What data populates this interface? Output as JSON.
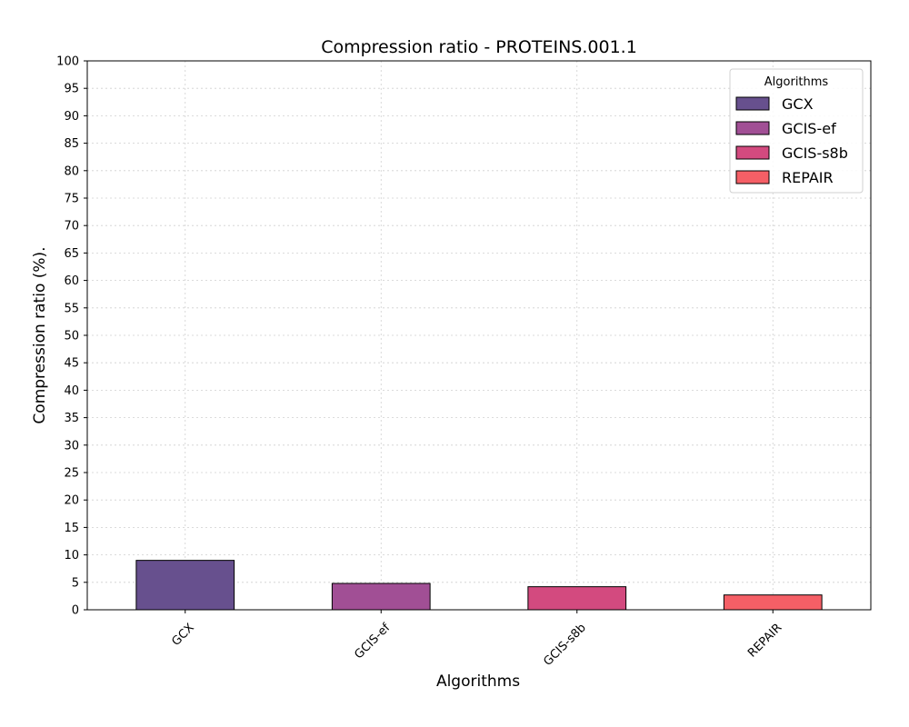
{
  "chart_data": {
    "type": "bar",
    "title": "Compression ratio -  PROTEINS.001.1",
    "xlabel": "Algorithms",
    "ylabel": "Compression ratio (%).",
    "categories": [
      "GCX",
      "GCIS-ef",
      "GCIS-s8b",
      "REPAIR"
    ],
    "values": [
      9.0,
      4.8,
      4.2,
      2.7
    ],
    "colors": [
      "#67508e",
      "#a14f95",
      "#d34a7f",
      "#f55f66"
    ],
    "ylim": [
      0,
      100
    ],
    "yticks": [
      0,
      5,
      10,
      15,
      20,
      25,
      30,
      35,
      40,
      45,
      50,
      55,
      60,
      65,
      70,
      75,
      80,
      85,
      90,
      95,
      100
    ],
    "grid": true,
    "legend": {
      "title": "Algorithms",
      "placement": "top-right",
      "entries": [
        "GCX",
        "GCIS-ef",
        "GCIS-s8b",
        "REPAIR"
      ]
    }
  }
}
